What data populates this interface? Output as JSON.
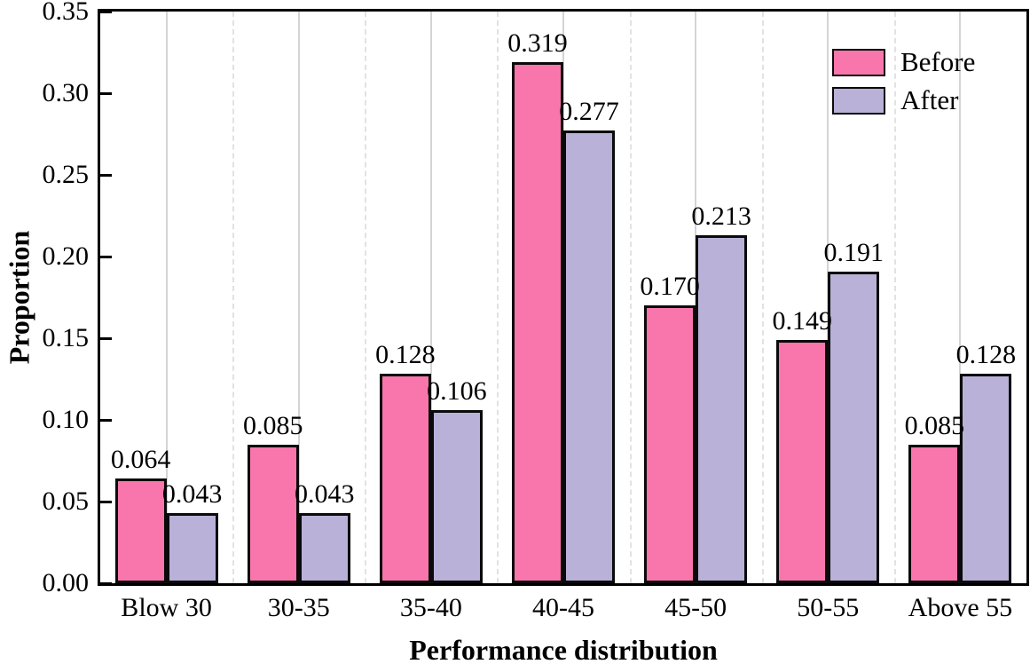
{
  "chart_data": {
    "type": "bar",
    "title": "",
    "xlabel": "Performance distribution",
    "ylabel": "Proportion",
    "categories": [
      "Blow 30",
      "30-35",
      "35-40",
      "40-45",
      "45-50",
      "50-55",
      "Above 55"
    ],
    "series": [
      {
        "name": "Before",
        "color": "#F976AD",
        "values": [
          0.064,
          0.085,
          0.128,
          0.319,
          0.17,
          0.149,
          0.085
        ],
        "value_labels": [
          "0.064",
          "0.085",
          "0.128",
          "0.319",
          "0.170",
          "0.149",
          "0.085"
        ]
      },
      {
        "name": "After",
        "color": "#B9B1D8",
        "values": [
          0.043,
          0.043,
          0.106,
          0.277,
          0.213,
          0.191,
          0.128
        ],
        "value_labels": [
          "0.043",
          "0.043",
          "0.106",
          "0.277",
          "0.213",
          "0.191",
          "0.128"
        ]
      }
    ],
    "ylim": [
      0,
      0.35
    ],
    "ytick_step": 0.05,
    "ytick_labels": [
      "0.00",
      "0.05",
      "0.10",
      "0.15",
      "0.20",
      "0.25",
      "0.30",
      "0.35"
    ],
    "bar_edge_color": "#0a0a0a",
    "grid": "vertical: solid lines at category centers, dashed lines at category boundaries",
    "legend_position": "top-right inside plot"
  }
}
